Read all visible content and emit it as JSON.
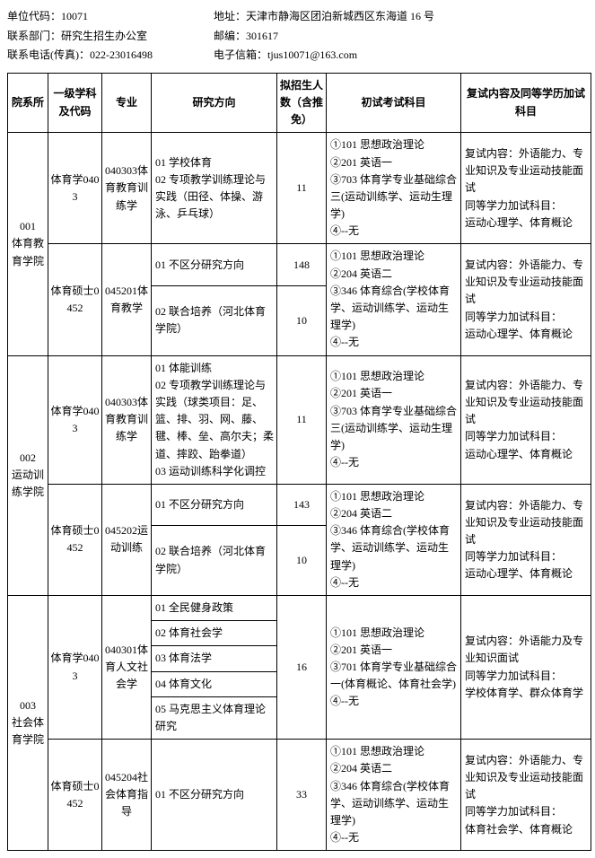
{
  "header": {
    "unit_code_label": "单位代码：",
    "unit_code": "10071",
    "address_label": "地址：",
    "address": "天津市静海区团泊新城西区东海道 16 号",
    "contact_dept_label": "联系部门：",
    "contact_dept": "研究生招生办公室",
    "postcode_label": "邮编：",
    "postcode": "301617",
    "phone_label": "联系电话(传真)：",
    "phone": "022-23016498",
    "email_label": "电子信箱：",
    "email": "tjus10071@163.com"
  },
  "columns": {
    "dept": "院系所",
    "level1": "一级学科及代码",
    "major": "专业",
    "direction": "研究方向",
    "num": "拟招生人数（含推免）",
    "exam": "初试考试科目",
    "retest": "复试内容及同等学历加试科目"
  },
  "d": {
    "dept001": "001\n体育教育学院",
    "dept002": "002\n运动训练学院",
    "dept003": "003\n社会体育学院",
    "lvl_tyx": "体育学0403",
    "lvl_tyss": "体育硕士0452",
    "maj_040303": "040303体育教育训练学",
    "maj_045201": "045201体育教学",
    "maj_045202": "045202运动训练",
    "maj_040301": "040301体育人文社会学",
    "maj_045204": "045204社会体育指导",
    "dir_001a": "01 学校体育\n02 专项教学训练理论与实践（田径、体操、游泳、乒乓球）",
    "dir_notdiv": "01 不区分研究方向",
    "dir_hebei": "02 联合培养（河北体育学院）",
    "dir_002a": "01 体能训练\n02 专项教学训练理论与实践（球类项目：足、篮、排、羽、网、藤、毽、棒、垒、高尔夫；柔道、摔跤、跆拳道）\n03 运动训练科学化调控",
    "dir_003a_1": "01 全民健身政策",
    "dir_003a_2": "02 体育社会学",
    "dir_003a_3": "03 体育法学",
    "dir_003a_4": "04 体育文化",
    "dir_003a_5": "05 马克思主义体育理论研究",
    "n11": "11",
    "n148": "148",
    "n10": "10",
    "n143": "143",
    "n16": "16",
    "n33": "33",
    "exam_703": "①101 思想政治理论\n②201 英语一\n③703 体育学专业基础综合三(运动训练学、运动生理学)\n④--无",
    "exam_346": "①101 思想政治理论\n②204 英语二\n③346 体育综合(学校体育学、运动训练学、运动生理学)\n④--无",
    "exam_701": "①101 思想政治理论\n②201 英语一\n③701 体育学专业基础综合一(体育概论、体育社会学) ④--无",
    "retest_sport": "复试内容：外语能力、专业知识及专业运动技能面试\n同等学力加试科目：\n运动心理学、体育概论",
    "retest_social_a": "复试内容：外语能力及专业知识面试\n同等学力加试科目：\n学校体育学、群众体育学",
    "retest_social_b": "复试内容：外语能力、专业知识及专业运动技能面试\n同等学力加试科目：\n体育社会学、体育概论"
  }
}
